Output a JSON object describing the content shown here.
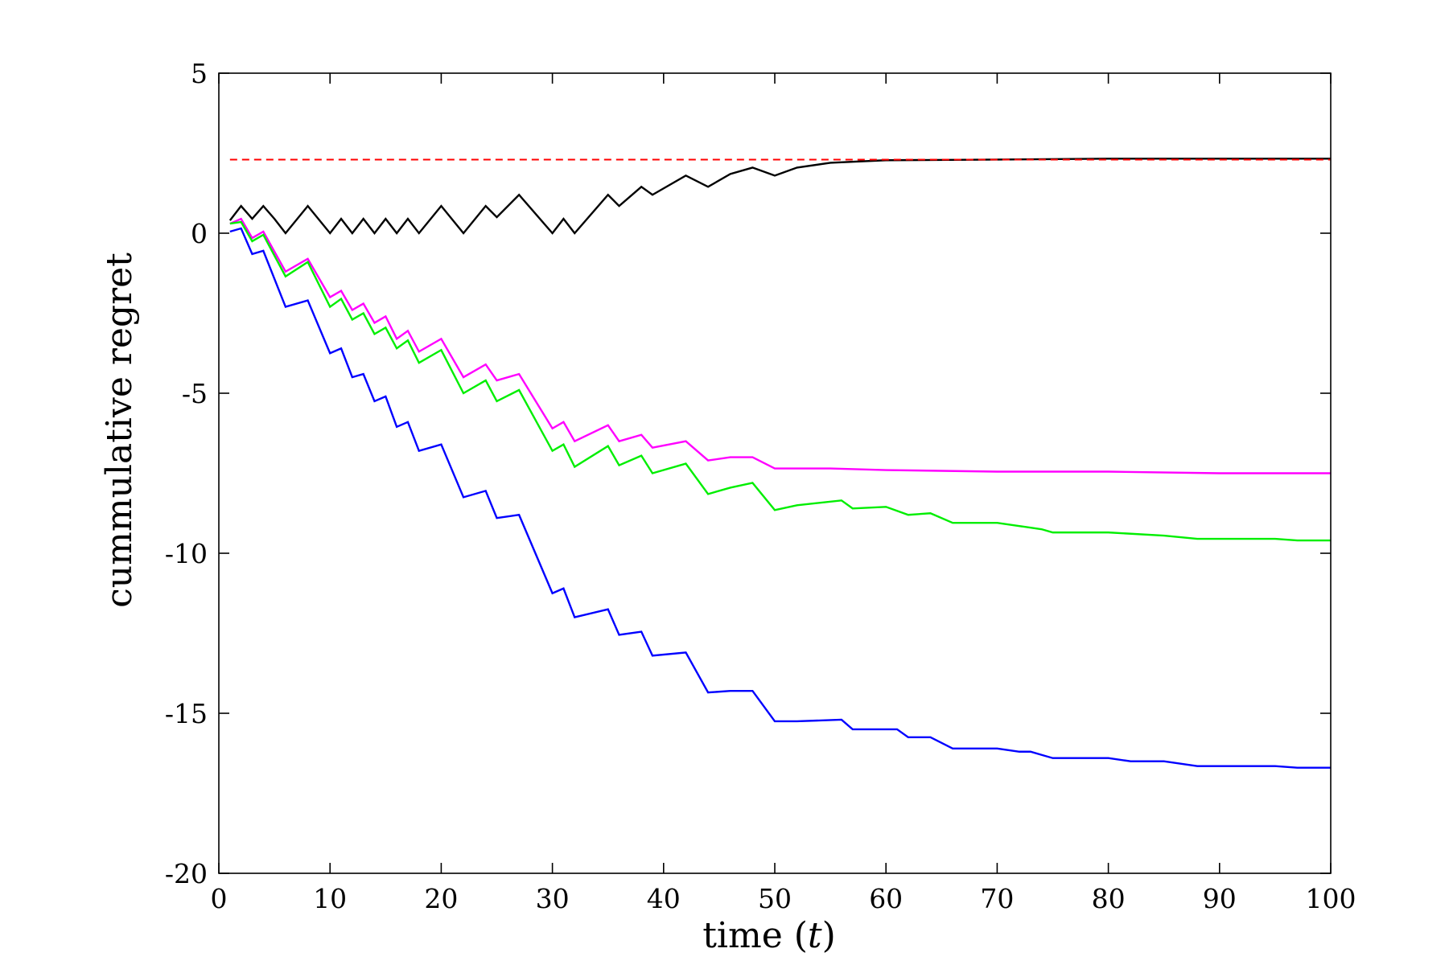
{
  "chart_data": {
    "type": "line",
    "title": "",
    "xlabel": "time (t)",
    "xlabel_prefix": "time (",
    "xlabel_var": "t",
    "xlabel_suffix": ")",
    "ylabel": "cummulative regret",
    "xlim": [
      0,
      100
    ],
    "ylim": [
      -20,
      5
    ],
    "x_ticks": [
      0,
      10,
      20,
      30,
      40,
      50,
      60,
      70,
      80,
      90,
      100
    ],
    "y_ticks": [
      5,
      0,
      -5,
      -10,
      -15,
      -20
    ],
    "x_tick_labels": [
      "0",
      "10",
      "20",
      "30",
      "40",
      "50",
      "60",
      "70",
      "80",
      "90",
      "100"
    ],
    "y_tick_labels": [
      "5",
      "0",
      "-5",
      "-10",
      "-15",
      "-20"
    ],
    "grid": false,
    "legend": "none",
    "series": [
      {
        "color": "#000000",
        "style": "solid",
        "points": [
          [
            1,
            0.4
          ],
          [
            2,
            0.85
          ],
          [
            3,
            0.45
          ],
          [
            4,
            0.85
          ],
          [
            5,
            0.45
          ],
          [
            6,
            0
          ],
          [
            8,
            0.85
          ],
          [
            10,
            0
          ],
          [
            11,
            0.45
          ],
          [
            12,
            0
          ],
          [
            13,
            0.45
          ],
          [
            14,
            0
          ],
          [
            15,
            0.45
          ],
          [
            16,
            0
          ],
          [
            17,
            0.45
          ],
          [
            18,
            0
          ],
          [
            20,
            0.85
          ],
          [
            22,
            0
          ],
          [
            24,
            0.85
          ],
          [
            25,
            0.5
          ],
          [
            27,
            1.2
          ],
          [
            30,
            0
          ],
          [
            31,
            0.45
          ],
          [
            32,
            0
          ],
          [
            35,
            1.2
          ],
          [
            36,
            0.85
          ],
          [
            38,
            1.45
          ],
          [
            39,
            1.2
          ],
          [
            42,
            1.8
          ],
          [
            44,
            1.45
          ],
          [
            46,
            1.85
          ],
          [
            48,
            2.05
          ],
          [
            50,
            1.8
          ],
          [
            52,
            2.05
          ],
          [
            55,
            2.2
          ],
          [
            60,
            2.28
          ],
          [
            70,
            2.3
          ],
          [
            80,
            2.33
          ],
          [
            90,
            2.33
          ],
          [
            100,
            2.33
          ]
        ]
      },
      {
        "color": "#ff0000",
        "style": "dashed",
        "points": [
          [
            1,
            2.3
          ],
          [
            100,
            2.3
          ]
        ]
      },
      {
        "color": "#ff00ff",
        "style": "solid",
        "points": [
          [
            1,
            0.3
          ],
          [
            2,
            0.45
          ],
          [
            3,
            -0.15
          ],
          [
            4,
            0.05
          ],
          [
            6,
            -1.2
          ],
          [
            8,
            -0.8
          ],
          [
            10,
            -2.0
          ],
          [
            11,
            -1.8
          ],
          [
            12,
            -2.4
          ],
          [
            13,
            -2.2
          ],
          [
            14,
            -2.8
          ],
          [
            15,
            -2.6
          ],
          [
            16,
            -3.3
          ],
          [
            17,
            -3.05
          ],
          [
            18,
            -3.7
          ],
          [
            20,
            -3.3
          ],
          [
            22,
            -4.5
          ],
          [
            24,
            -4.1
          ],
          [
            25,
            -4.6
          ],
          [
            27,
            -4.4
          ],
          [
            30,
            -6.1
          ],
          [
            31,
            -5.9
          ],
          [
            32,
            -6.5
          ],
          [
            35,
            -6.0
          ],
          [
            36,
            -6.5
          ],
          [
            38,
            -6.3
          ],
          [
            39,
            -6.7
          ],
          [
            42,
            -6.5
          ],
          [
            44,
            -7.1
          ],
          [
            46,
            -7.0
          ],
          [
            48,
            -7.0
          ],
          [
            50,
            -7.35
          ],
          [
            55,
            -7.35
          ],
          [
            60,
            -7.4
          ],
          [
            70,
            -7.45
          ],
          [
            80,
            -7.45
          ],
          [
            90,
            -7.5
          ],
          [
            100,
            -7.5
          ]
        ]
      },
      {
        "color": "#00ee00",
        "style": "solid",
        "points": [
          [
            1,
            0.3
          ],
          [
            2,
            0.35
          ],
          [
            3,
            -0.25
          ],
          [
            4,
            -0.05
          ],
          [
            6,
            -1.35
          ],
          [
            8,
            -0.9
          ],
          [
            10,
            -2.3
          ],
          [
            11,
            -2.05
          ],
          [
            12,
            -2.7
          ],
          [
            13,
            -2.5
          ],
          [
            14,
            -3.15
          ],
          [
            15,
            -2.95
          ],
          [
            16,
            -3.6
          ],
          [
            17,
            -3.35
          ],
          [
            18,
            -4.05
          ],
          [
            20,
            -3.65
          ],
          [
            22,
            -5.0
          ],
          [
            24,
            -4.6
          ],
          [
            25,
            -5.25
          ],
          [
            27,
            -4.9
          ],
          [
            30,
            -6.8
          ],
          [
            31,
            -6.6
          ],
          [
            32,
            -7.3
          ],
          [
            35,
            -6.65
          ],
          [
            36,
            -7.25
          ],
          [
            38,
            -6.95
          ],
          [
            39,
            -7.5
          ],
          [
            42,
            -7.2
          ],
          [
            44,
            -8.15
          ],
          [
            46,
            -7.95
          ],
          [
            48,
            -7.8
          ],
          [
            50,
            -8.65
          ],
          [
            52,
            -8.5
          ],
          [
            56,
            -8.35
          ],
          [
            57,
            -8.6
          ],
          [
            60,
            -8.55
          ],
          [
            62,
            -8.8
          ],
          [
            64,
            -8.75
          ],
          [
            66,
            -9.05
          ],
          [
            70,
            -9.05
          ],
          [
            72,
            -9.15
          ],
          [
            74,
            -9.25
          ],
          [
            75,
            -9.35
          ],
          [
            80,
            -9.35
          ],
          [
            85,
            -9.45
          ],
          [
            88,
            -9.55
          ],
          [
            95,
            -9.55
          ],
          [
            97,
            -9.6
          ],
          [
            100,
            -9.6
          ]
        ]
      },
      {
        "color": "#0000ff",
        "style": "solid",
        "points": [
          [
            1,
            0.05
          ],
          [
            2,
            0.15
          ],
          [
            3,
            -0.65
          ],
          [
            4,
            -0.55
          ],
          [
            6,
            -2.3
          ],
          [
            8,
            -2.1
          ],
          [
            10,
            -3.75
          ],
          [
            11,
            -3.6
          ],
          [
            12,
            -4.5
          ],
          [
            13,
            -4.4
          ],
          [
            14,
            -5.25
          ],
          [
            15,
            -5.1
          ],
          [
            16,
            -6.05
          ],
          [
            17,
            -5.9
          ],
          [
            18,
            -6.8
          ],
          [
            20,
            -6.6
          ],
          [
            22,
            -8.25
          ],
          [
            24,
            -8.05
          ],
          [
            25,
            -8.9
          ],
          [
            27,
            -8.8
          ],
          [
            30,
            -11.25
          ],
          [
            31,
            -11.1
          ],
          [
            32,
            -12.0
          ],
          [
            35,
            -11.75
          ],
          [
            36,
            -12.55
          ],
          [
            38,
            -12.45
          ],
          [
            39,
            -13.2
          ],
          [
            42,
            -13.1
          ],
          [
            44,
            -14.35
          ],
          [
            46,
            -14.3
          ],
          [
            48,
            -14.3
          ],
          [
            50,
            -15.25
          ],
          [
            52,
            -15.25
          ],
          [
            56,
            -15.2
          ],
          [
            57,
            -15.5
          ],
          [
            61,
            -15.5
          ],
          [
            62,
            -15.75
          ],
          [
            64,
            -15.75
          ],
          [
            66,
            -16.1
          ],
          [
            70,
            -16.1
          ],
          [
            72,
            -16.2
          ],
          [
            73,
            -16.2
          ],
          [
            74,
            -16.3
          ],
          [
            75,
            -16.4
          ],
          [
            80,
            -16.4
          ],
          [
            82,
            -16.5
          ],
          [
            85,
            -16.5
          ],
          [
            88,
            -16.65
          ],
          [
            95,
            -16.65
          ],
          [
            97,
            -16.7
          ],
          [
            100,
            -16.7
          ]
        ]
      }
    ]
  }
}
